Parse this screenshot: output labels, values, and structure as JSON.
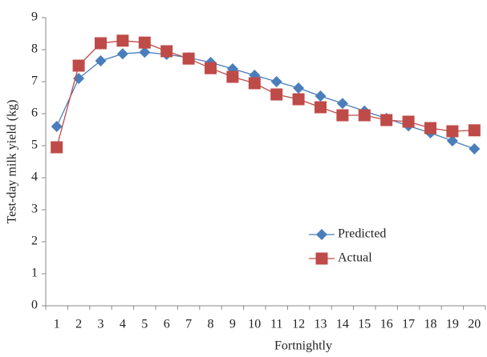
{
  "chart_data": {
    "type": "line",
    "x_label": "Fortnightly",
    "y_label": "Test-day milk yield (kg)",
    "categories": [
      "1",
      "2",
      "3",
      "4",
      "5",
      "6",
      "7",
      "8",
      "9",
      "10",
      "11",
      "12",
      "13",
      "14",
      "15",
      "16",
      "17",
      "18",
      "19",
      "20"
    ],
    "series": [
      {
        "name": "Predicted",
        "color": "#4a7ebb",
        "marker": "diamond",
        "values": [
          5.6,
          7.1,
          7.65,
          7.87,
          7.92,
          7.85,
          7.75,
          7.6,
          7.4,
          7.2,
          7.0,
          6.8,
          6.55,
          6.32,
          6.08,
          5.85,
          5.62,
          5.4,
          5.15,
          4.9
        ]
      },
      {
        "name": "Actual",
        "color": "#be4b48",
        "marker": "square",
        "values": [
          4.95,
          7.5,
          8.2,
          8.28,
          8.22,
          7.95,
          7.72,
          7.42,
          7.15,
          6.95,
          6.6,
          6.45,
          6.2,
          5.95,
          5.95,
          5.8,
          5.75,
          5.55,
          5.45,
          5.48
        ]
      }
    ],
    "ylim": [
      0,
      9
    ],
    "yticks": [
      0,
      1,
      2,
      3,
      4,
      5,
      6,
      7,
      8,
      9
    ],
    "grid": false,
    "legend": "inside"
  }
}
